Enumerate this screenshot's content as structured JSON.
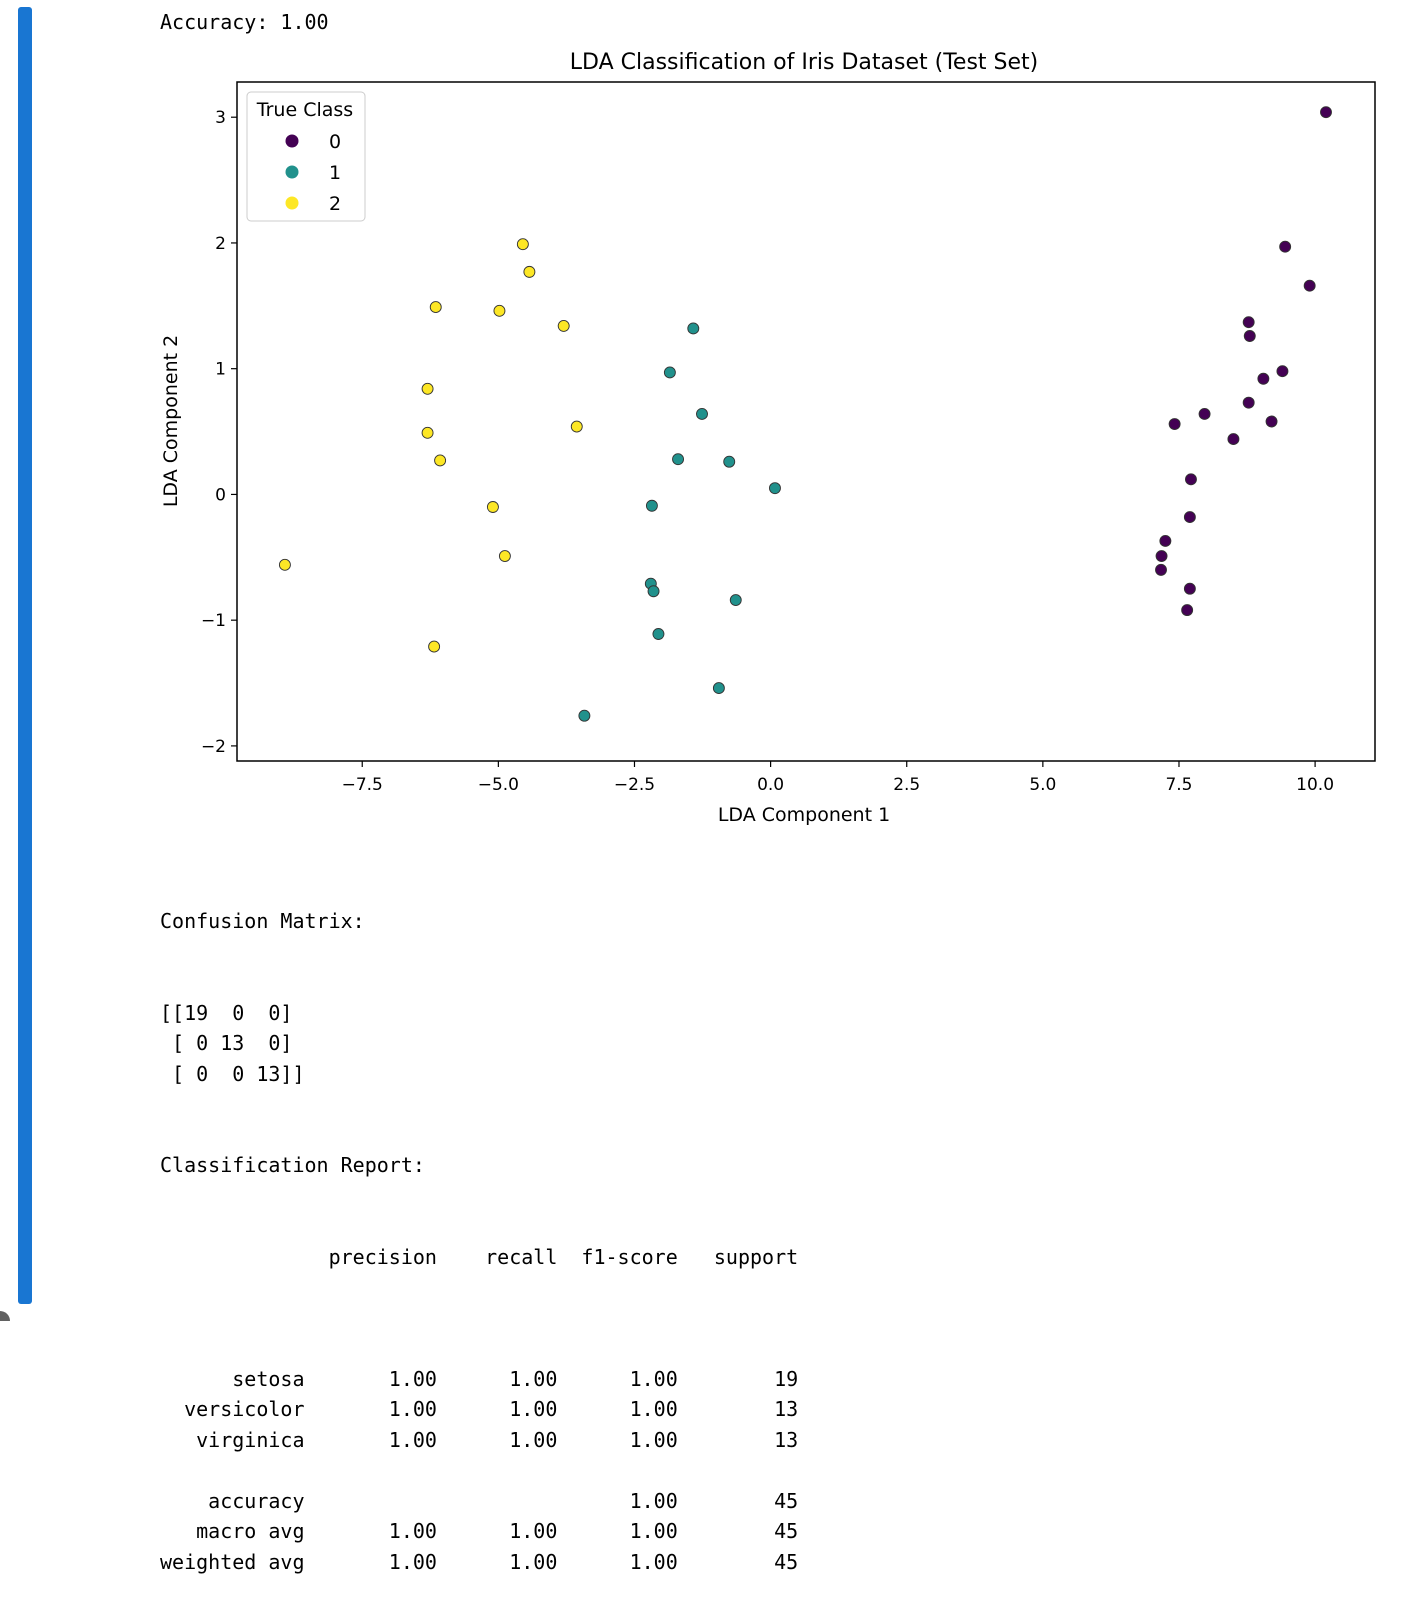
{
  "output_cell": {
    "accent_color": "#1976d2",
    "accuracy_text": "Accuracy: 1.00",
    "confusion_title": "Confusion Matrix:",
    "confusion_rows": [
      "[[19  0  0]",
      " [ 0 13  0]",
      " [ 0  0 13]]"
    ],
    "report_title": "Classification Report:",
    "report_header": "              precision    recall  f1-score   support",
    "report_rows": [
      "",
      "      setosa       1.00      1.00      1.00        19",
      "  versicolor       1.00      1.00      1.00        13",
      "   virginica       1.00      1.00      1.00        13",
      "",
      "    accuracy                           1.00        45",
      "   macro avg       1.00      1.00      1.00        45",
      "weighted avg       1.00      1.00      1.00        45"
    ]
  },
  "chart_data": {
    "type": "scatter",
    "title": "LDA Classification of Iris Dataset (Test Set)",
    "xlabel": "LDA Component 1",
    "ylabel": "LDA Component 2",
    "xlim": [
      -9.8,
      11.1
    ],
    "ylim": [
      -2.12,
      3.28
    ],
    "xticks": [
      -7.5,
      -5.0,
      -2.5,
      0.0,
      2.5,
      5.0,
      7.5,
      10.0
    ],
    "xtick_labels": [
      "−7.5",
      "−5.0",
      "−2.5",
      "0.0",
      "2.5",
      "5.0",
      "7.5",
      "10.0"
    ],
    "yticks": [
      -2,
      -1,
      0,
      1,
      2,
      3
    ],
    "ytick_labels": [
      "−2",
      "−1",
      "0",
      "1",
      "2",
      "3"
    ],
    "grid": false,
    "legend": {
      "title": "True Class",
      "placement": "top-left"
    },
    "series": [
      {
        "name": "0",
        "color": "#440154",
        "points": [
          [
            10.2,
            3.04
          ],
          [
            9.45,
            1.97
          ],
          [
            9.9,
            1.66
          ],
          [
            8.78,
            1.37
          ],
          [
            8.8,
            1.26
          ],
          [
            9.4,
            0.98
          ],
          [
            9.05,
            0.92
          ],
          [
            8.78,
            0.73
          ],
          [
            9.2,
            0.58
          ],
          [
            7.42,
            0.56
          ],
          [
            7.97,
            0.64
          ],
          [
            8.5,
            0.44
          ],
          [
            7.72,
            0.12
          ],
          [
            7.7,
            -0.18
          ],
          [
            7.25,
            -0.37
          ],
          [
            7.18,
            -0.49
          ],
          [
            7.17,
            -0.6
          ],
          [
            7.7,
            -0.75
          ],
          [
            7.65,
            -0.92
          ]
        ]
      },
      {
        "name": "1",
        "color": "#21918c",
        "points": [
          [
            -1.42,
            1.32
          ],
          [
            -1.85,
            0.97
          ],
          [
            -1.26,
            0.64
          ],
          [
            -1.7,
            0.28
          ],
          [
            -0.76,
            0.26
          ],
          [
            0.08,
            0.05
          ],
          [
            -2.18,
            -0.09
          ],
          [
            -2.2,
            -0.71
          ],
          [
            -2.15,
            -0.77
          ],
          [
            -0.64,
            -0.84
          ],
          [
            -2.06,
            -1.11
          ],
          [
            -0.95,
            -1.54
          ],
          [
            -3.42,
            -1.76
          ]
        ]
      },
      {
        "name": "2",
        "color": "#fde725",
        "points": [
          [
            -4.55,
            1.99
          ],
          [
            -4.43,
            1.77
          ],
          [
            -6.15,
            1.49
          ],
          [
            -4.98,
            1.46
          ],
          [
            -3.8,
            1.34
          ],
          [
            -6.3,
            0.84
          ],
          [
            -3.56,
            0.54
          ],
          [
            -6.3,
            0.49
          ],
          [
            -6.07,
            0.27
          ],
          [
            -5.1,
            -0.1
          ],
          [
            -4.88,
            -0.49
          ],
          [
            -8.92,
            -0.56
          ],
          [
            -6.18,
            -1.21
          ]
        ]
      }
    ]
  }
}
